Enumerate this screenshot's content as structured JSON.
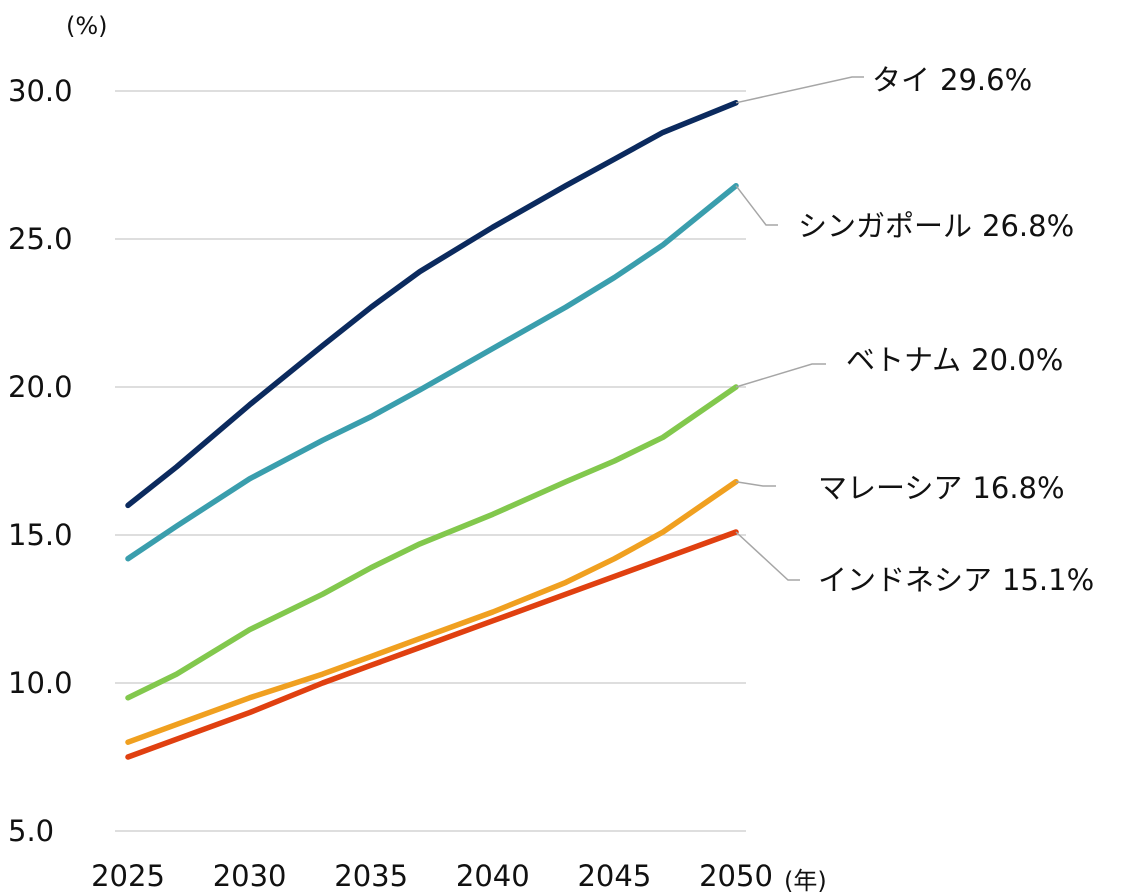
{
  "chart_data": {
    "type": "line",
    "y_unit_label": "(%)",
    "x_unit_label": "(年)",
    "xlim": [
      2025,
      2050
    ],
    "ylim": [
      5.0,
      30.0
    ],
    "x_ticks": [
      "2025",
      "2030",
      "2035",
      "2040",
      "2045",
      "2050"
    ],
    "y_ticks": [
      "5.0",
      "10.0",
      "15.0",
      "20.0",
      "25.0",
      "30.0"
    ],
    "grid": "horizontal",
    "x": [
      2025,
      2027,
      2030,
      2033,
      2035,
      2037,
      2040,
      2043,
      2045,
      2047,
      2050
    ],
    "series": [
      {
        "name": "タイ",
        "end_label": "29.6%",
        "color": "#0b2a5e",
        "values": [
          16.0,
          17.3,
          19.4,
          21.4,
          22.7,
          23.9,
          25.4,
          26.8,
          27.7,
          28.6,
          29.6
        ]
      },
      {
        "name": "シンガポール",
        "end_label": "26.8%",
        "color": "#3a9ead",
        "values": [
          14.2,
          15.3,
          16.9,
          18.2,
          19.0,
          19.9,
          21.3,
          22.7,
          23.7,
          24.8,
          26.8
        ]
      },
      {
        "name": "ベトナム",
        "end_label": "20.0%",
        "color": "#82c84d",
        "values": [
          9.5,
          10.3,
          11.8,
          13.0,
          13.9,
          14.7,
          15.7,
          16.8,
          17.5,
          18.3,
          20.0
        ]
      },
      {
        "name": "マレーシア",
        "end_label": "16.8%",
        "color": "#f0a020",
        "values": [
          8.0,
          8.6,
          9.5,
          10.3,
          10.9,
          11.5,
          12.4,
          13.4,
          14.2,
          15.1,
          16.8
        ]
      },
      {
        "name": "インドネシア",
        "end_label": "15.1%",
        "color": "#e04010",
        "values": [
          7.5,
          8.1,
          9.0,
          10.0,
          10.6,
          11.2,
          12.1,
          13.0,
          13.6,
          14.2,
          15.1
        ]
      }
    ]
  }
}
